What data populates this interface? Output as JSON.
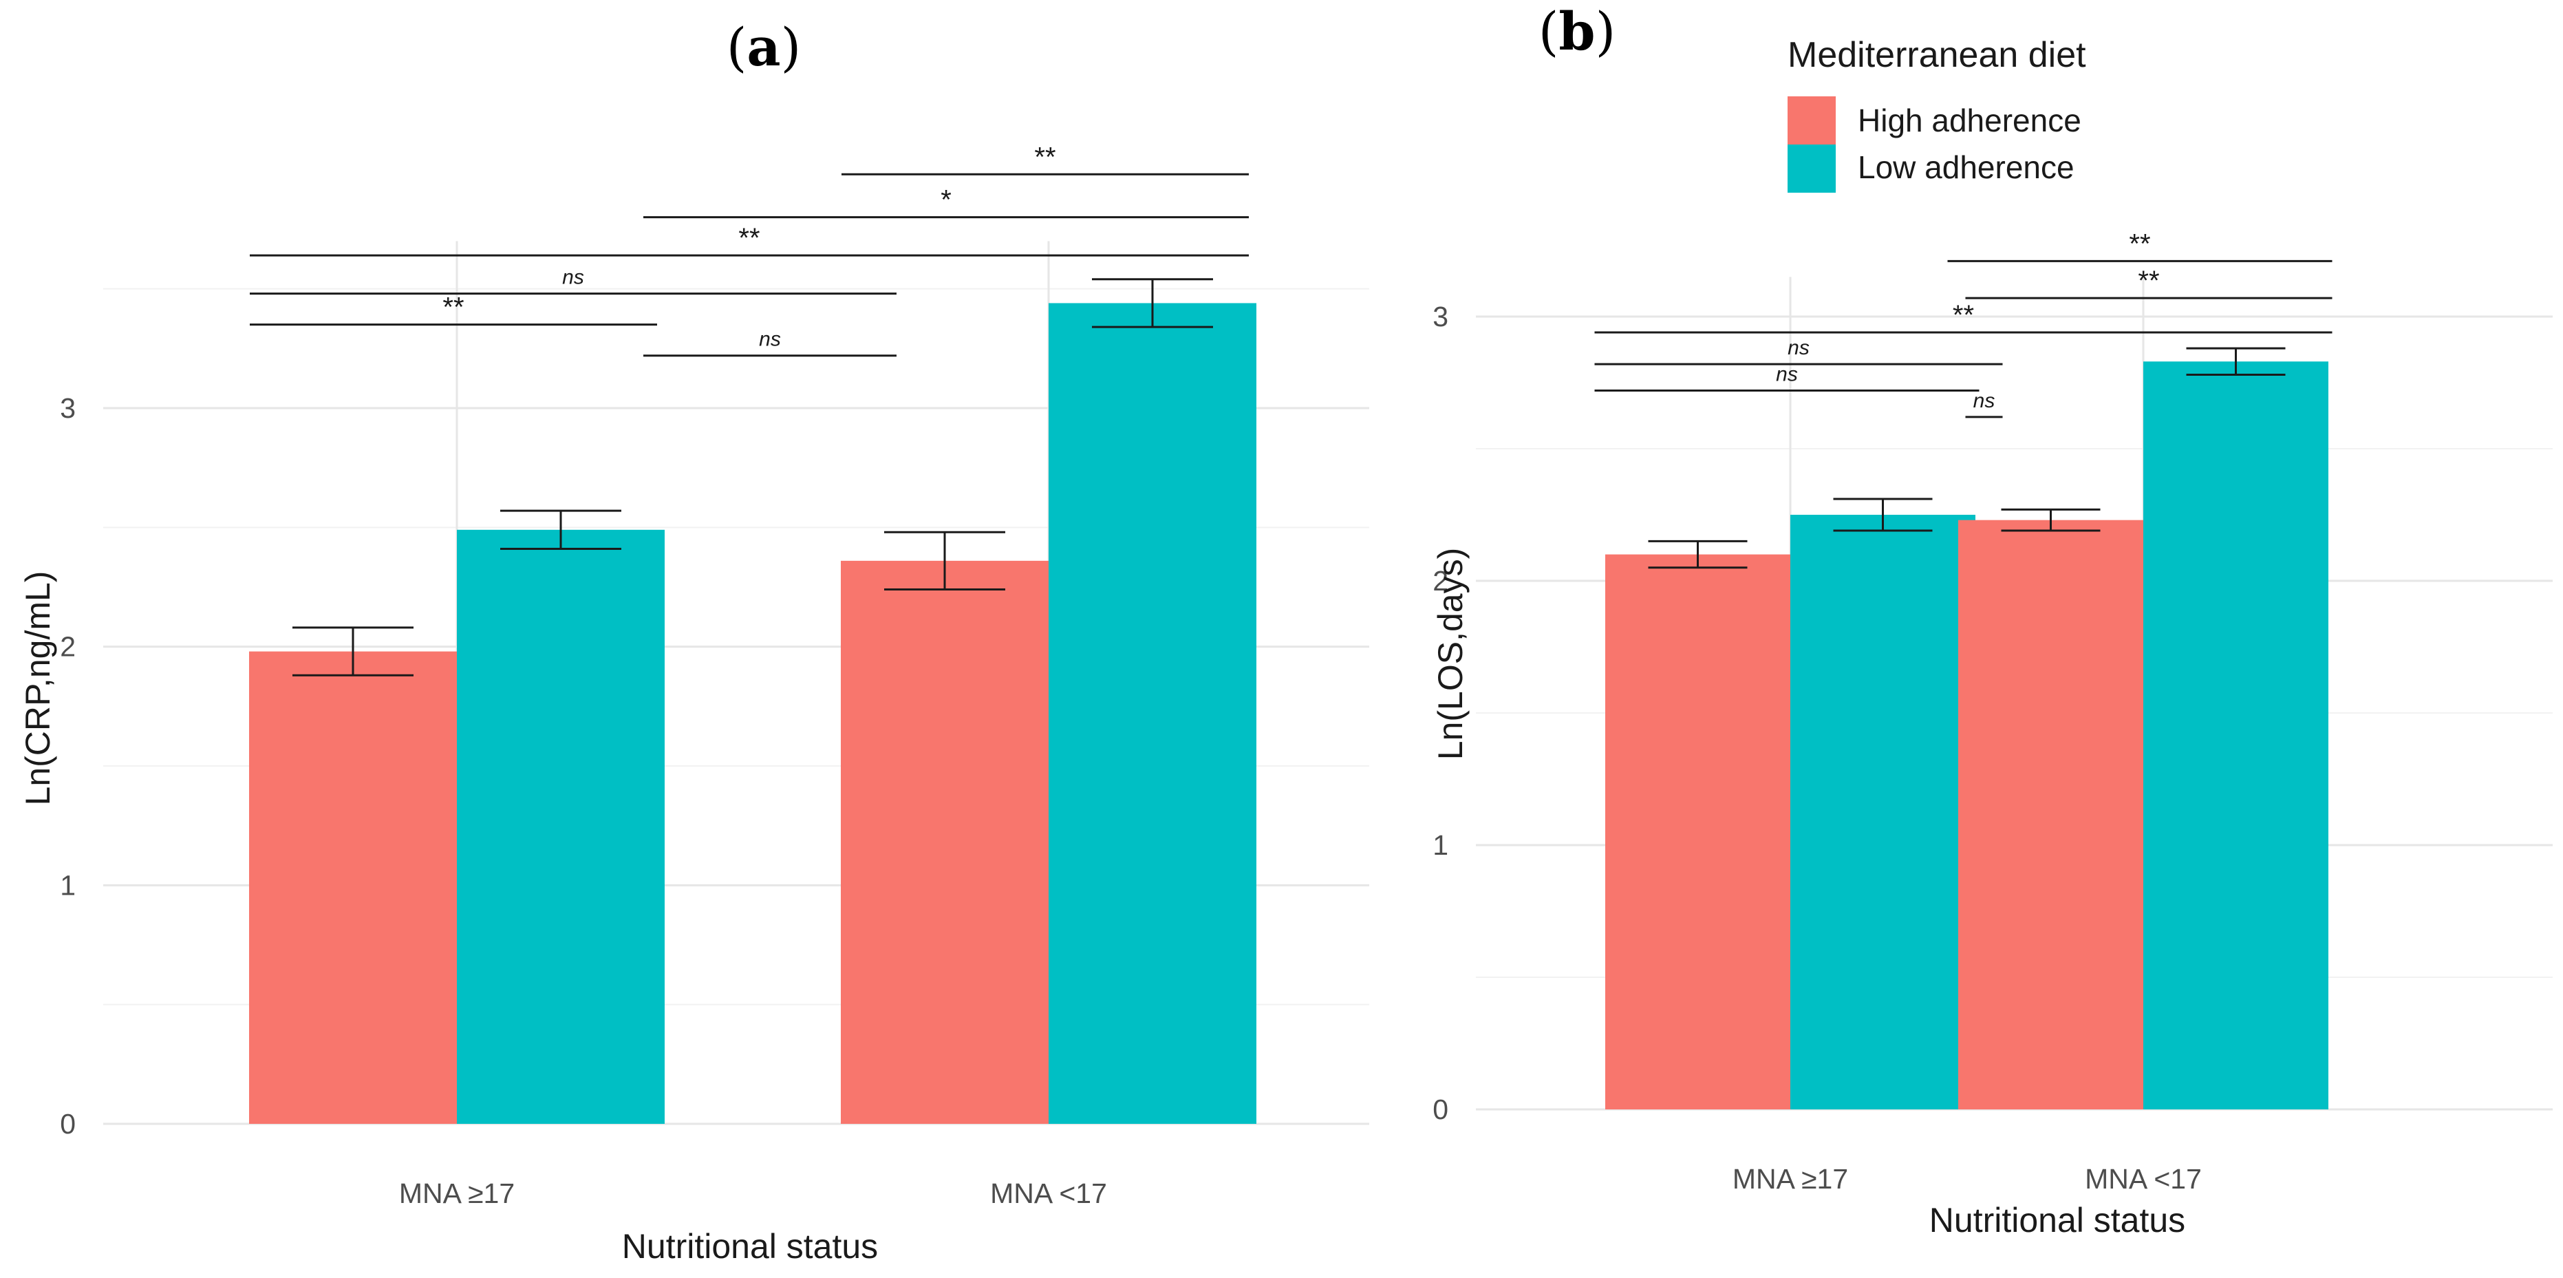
{
  "legend": {
    "title": "Mediterranean diet",
    "entries": [
      {
        "label": "High adherence",
        "color": "#F8766D"
      },
      {
        "label": "Low adherence",
        "color": "#00BFC4"
      }
    ]
  },
  "chart_data": [
    {
      "type": "bar",
      "panel_label": "a",
      "categories": [
        "MNA ≥17",
        "MNA <17"
      ],
      "series": [
        {
          "name": "High adherence",
          "color": "#F8766D",
          "values": [
            1.98,
            2.36
          ],
          "error": [
            0.1,
            0.12
          ]
        },
        {
          "name": "Low adherence",
          "color": "#00BFC4",
          "values": [
            2.49,
            3.44
          ],
          "error": [
            0.08,
            0.1
          ]
        }
      ],
      "xlabel": "Nutritional status",
      "ylabel": "Ln(CRP,ng/mL)",
      "ylim": [
        0,
        3.7
      ],
      "yticks": [
        0,
        1,
        2,
        3
      ],
      "grid": true,
      "significance": [
        {
          "from": [
            0,
            0
          ],
          "to": [
            0,
            1
          ],
          "label": "**",
          "y": 3.35
        },
        {
          "from": [
            0,
            1
          ],
          "to": [
            1,
            0
          ],
          "label": "ns",
          "y": 3.22
        },
        {
          "from": [
            0,
            0
          ],
          "to": [
            1,
            0
          ],
          "label": "ns",
          "y": 3.48
        },
        {
          "from": [
            0,
            0
          ],
          "to": [
            1,
            1
          ],
          "label": "**",
          "y": 3.64
        },
        {
          "from": [
            0,
            1
          ],
          "to": [
            1,
            1
          ],
          "label": "*",
          "y": 3.8
        },
        {
          "from": [
            1,
            0
          ],
          "to": [
            1,
            1
          ],
          "label": "**",
          "y": 3.98
        }
      ]
    },
    {
      "type": "bar",
      "panel_label": "b",
      "categories": [
        "MNA ≥17",
        "MNA <17"
      ],
      "series": [
        {
          "name": "High adherence",
          "color": "#F8766D",
          "values": [
            2.1,
            2.23
          ],
          "error": [
            0.05,
            0.04
          ]
        },
        {
          "name": "Low adherence",
          "color": "#00BFC4",
          "values": [
            2.25,
            2.83
          ],
          "error": [
            0.06,
            0.05
          ]
        }
      ],
      "xlabel": "Nutritional status",
      "ylabel": "Ln(LOS,days)",
      "ylim": [
        0,
        3.15
      ],
      "yticks": [
        0,
        1,
        2,
        3
      ],
      "grid": true,
      "significance": [
        {
          "from": [
            0,
            0
          ],
          "to": [
            0,
            1
          ],
          "label": "ns",
          "y": 2.72
        },
        {
          "from": [
            0,
            1
          ],
          "to": [
            1,
            0
          ],
          "label": "ns",
          "y": 2.62
        },
        {
          "from": [
            0,
            0
          ],
          "to": [
            1,
            0
          ],
          "label": "ns",
          "y": 2.82
        },
        {
          "from": [
            0,
            0
          ],
          "to": [
            1,
            1
          ],
          "label": "**",
          "y": 2.94
        },
        {
          "from": [
            0,
            1
          ],
          "to": [
            1,
            1
          ],
          "label": "**",
          "y": 3.07
        },
        {
          "from": [
            1,
            0
          ],
          "to": [
            1,
            1
          ],
          "label": "**",
          "y": 3.21
        }
      ]
    }
  ]
}
